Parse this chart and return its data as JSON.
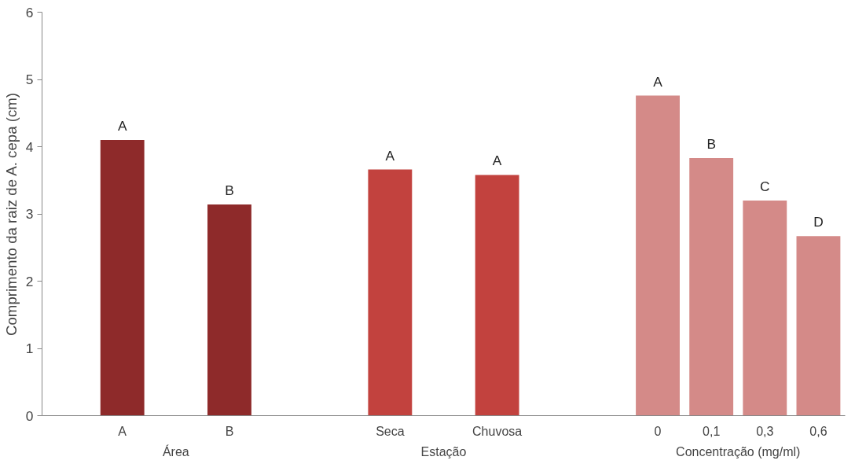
{
  "chart_data": {
    "type": "bar",
    "ylabel": "Comprimento da raiz de A. cepa (cm)",
    "categories": [
      null,
      "A",
      null,
      "B",
      null,
      null,
      "Seca",
      null,
      "Chuvosa",
      null,
      null,
      "0",
      "0,1",
      "0,3",
      "0,6"
    ],
    "values": [
      null,
      4.1,
      null,
      3.14,
      null,
      null,
      3.66,
      null,
      3.58,
      null,
      null,
      4.76,
      3.83,
      3.2,
      2.67
    ],
    "colors": [
      null,
      "#8e2a2a",
      null,
      "#8e2a2a",
      null,
      null,
      "#c2423e",
      null,
      "#c2423e",
      null,
      null,
      "#d48a88",
      "#d48a88",
      "#d48a88",
      "#d48a88"
    ],
    "value_labels": [
      null,
      "A",
      null,
      "B",
      null,
      null,
      "A",
      null,
      "A",
      null,
      null,
      "A",
      "B",
      "C",
      "D"
    ],
    "annotations": [
      "Área",
      "Estação",
      "Concentração (mg/ml)"
    ],
    "ylim": [
      0,
      6
    ],
    "yticks": [
      0,
      1,
      2,
      3,
      4,
      5,
      6
    ],
    "grid": false
  }
}
